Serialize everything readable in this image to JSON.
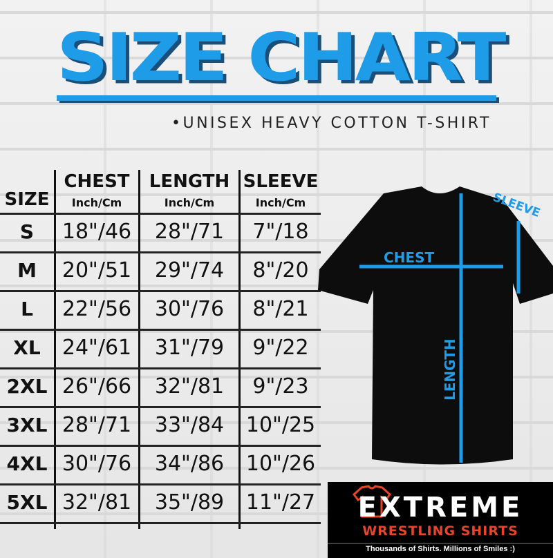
{
  "title": "SIZE CHART",
  "subtitle": "•UNISEX HEAVY COTTON T-SHIRT",
  "table": {
    "size_header": "SIZE",
    "columns": [
      {
        "label": "CHEST",
        "unit": "Inch/Cm"
      },
      {
        "label": "LENGTH",
        "unit": "Inch/Cm"
      },
      {
        "label": "SLEEVE",
        "unit": "Inch/Cm"
      }
    ],
    "rows": [
      {
        "size": "S",
        "values": [
          "18\"/46",
          "28\"/71",
          "7\"/18"
        ]
      },
      {
        "size": "M",
        "values": [
          "20\"/51",
          "29\"/74",
          "8\"/20"
        ]
      },
      {
        "size": "L",
        "values": [
          "22\"/56",
          "30\"/76",
          "8\"/21"
        ]
      },
      {
        "size": "XL",
        "values": [
          "24\"/61",
          "31\"/79",
          "9\"/22"
        ]
      },
      {
        "size": "2XL",
        "values": [
          "26\"/66",
          "32\"/81",
          "9\"/23"
        ]
      },
      {
        "size": "3XL",
        "values": [
          "28\"/71",
          "33\"/84",
          "10\"/25"
        ]
      },
      {
        "size": "4XL",
        "values": [
          "30\"/76",
          "34\"/86",
          "10\"/26"
        ]
      },
      {
        "size": "5XL",
        "values": [
          "32\"/81",
          "35\"/89",
          "11\"/27"
        ]
      }
    ]
  },
  "diagram": {
    "chest": "CHEST",
    "length": "LENGTH",
    "sleeve": "SLEEVE"
  },
  "logo": {
    "name": "EXTREME",
    "line2": "WRESTLING SHIRTS",
    "tagline": "Thousands of Shirts. Millions of Smiles :)"
  },
  "colors": {
    "accent": "#1f9ce8",
    "shadow": "#1a4f7a",
    "logo_red": "#e8442a"
  }
}
